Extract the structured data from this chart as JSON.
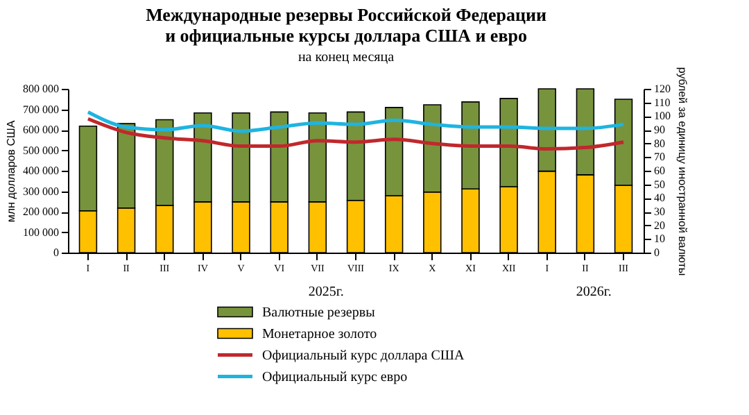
{
  "chart_data": {
    "type": "bar",
    "title": "Международные резервы Российской Федерации\nи официальные курсы доллара США и евро",
    "subtitle": "на конец месяца",
    "ylabel": "млн долларов США",
    "y2label": "рублей за единицу иностранной валюты",
    "categories": [
      "I",
      "II",
      "III",
      "IV",
      "V",
      "VI",
      "VII",
      "VIII",
      "IX",
      "X",
      "XI",
      "XII",
      "I",
      "II",
      "III"
    ],
    "stacked": true,
    "series": [
      {
        "name": "Монетарное золото",
        "color": "#ffc000",
        "values": [
          204000,
          218000,
          230000,
          248000,
          248000,
          248000,
          248000,
          255000,
          278000,
          296000,
          311000,
          322000,
          398000,
          380000,
          329000
        ]
      },
      {
        "name": "Валютные резервы",
        "color": "#77933c",
        "values": [
          414000,
          412000,
          419000,
          434000,
          434000,
          439000,
          434000,
          432000,
          431000,
          426000,
          425000,
          431000,
          402000,
          420000,
          420000
        ]
      },
      {
        "name": "Официальный курс доллара США",
        "type": "line",
        "axis": "y2",
        "line_style": "solid",
        "color": "#c0282c",
        "values": [
          98,
          88,
          84,
          82,
          78,
          78,
          82,
          81,
          83,
          80,
          78,
          78,
          76,
          77,
          81
        ]
      },
      {
        "name": "Официальный курс евро",
        "type": "line",
        "axis": "y2",
        "line_style": "solid",
        "color": "#1fb4e0",
        "values": [
          103,
          92,
          90,
          93,
          89,
          92,
          95,
          94,
          97,
          94,
          92,
          92,
          91,
          91,
          94
        ]
      }
    ],
    "ylim": [
      0,
      800000
    ],
    "yticks": [
      0,
      {
        "value": 100000,
        "label": "100 000"
      },
      {
        "value": 200000,
        "label": "200 000"
      },
      {
        "value": 300000,
        "label": "300 000"
      },
      {
        "value": 400000,
        "label": "400 000"
      },
      {
        "value": 500000,
        "label": "500 000"
      },
      {
        "value": 600000,
        "label": "600 000"
      },
      {
        "value": 700000,
        "label": "700 000"
      },
      {
        "value": 800000,
        "label": "800 000"
      }
    ],
    "y2lim": [
      0,
      120
    ],
    "y2ticks": [
      0,
      10,
      20,
      30,
      40,
      50,
      60,
      70,
      80,
      90,
      100,
      110,
      120
    ],
    "annotations": [
      "2025г.",
      "2026г."
    ],
    "grid": false,
    "legend": "bottom"
  }
}
